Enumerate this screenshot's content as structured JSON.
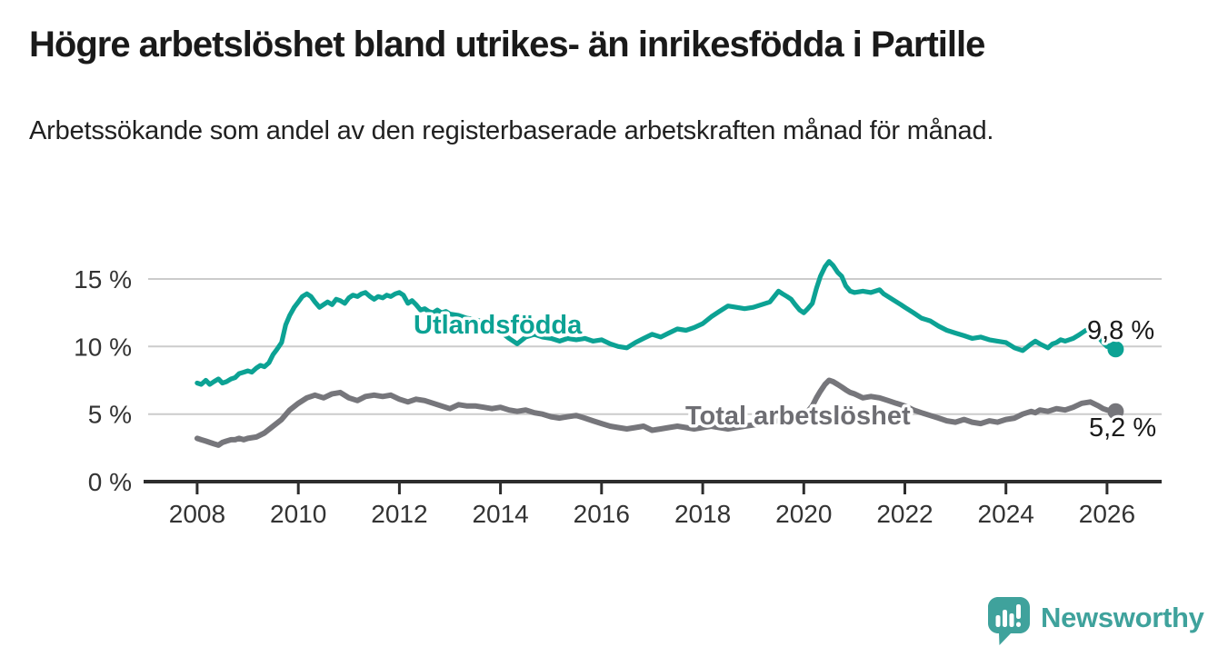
{
  "header": {
    "title": "Högre arbetslöshet bland utrikes- än inrikesfödda i Partille",
    "subtitle": "Arbetssökande som andel av den registerbaserade arbetskraften månad för månad."
  },
  "branding": {
    "name": "Newsworthy",
    "color": "#3FA29C",
    "icon": "bar-chart-speech-bubble-icon"
  },
  "chart_data": {
    "type": "line",
    "unit": "%",
    "frequency": "monthly",
    "grid": "horizontal",
    "xlim": [
      2007.03,
      2027.08
    ],
    "ylim": [
      0,
      16.95
    ],
    "x_ticks": [
      {
        "value": 2008,
        "label": "2008"
      },
      {
        "value": 2010,
        "label": "2010"
      },
      {
        "value": 2012,
        "label": "2012"
      },
      {
        "value": 2014,
        "label": "2014"
      },
      {
        "value": 2016,
        "label": "2016"
      },
      {
        "value": 2018,
        "label": "2018"
      },
      {
        "value": 2020,
        "label": "2020"
      },
      {
        "value": 2022,
        "label": "2022"
      },
      {
        "value": 2024,
        "label": "2024"
      },
      {
        "value": 2026,
        "label": "2026"
      }
    ],
    "y_ticks": [
      {
        "value": 0,
        "label": "0 %"
      },
      {
        "value": 5,
        "label": "5 %"
      },
      {
        "value": 10,
        "label": "10 %"
      },
      {
        "value": 15,
        "label": "15 %"
      }
    ],
    "series": [
      {
        "name": "Utlandsfödda",
        "color": "#0CA294",
        "end_value": 9.8,
        "end_label": "9,8 %",
        "points": [
          [
            2008.0,
            7.3
          ],
          [
            2008.08,
            7.2
          ],
          [
            2008.17,
            7.5
          ],
          [
            2008.25,
            7.2
          ],
          [
            2008.33,
            7.4
          ],
          [
            2008.42,
            7.6
          ],
          [
            2008.5,
            7.3
          ],
          [
            2008.58,
            7.4
          ],
          [
            2008.67,
            7.6
          ],
          [
            2008.75,
            7.7
          ],
          [
            2008.83,
            8.0
          ],
          [
            2008.92,
            8.1
          ],
          [
            2009.0,
            8.2
          ],
          [
            2009.08,
            8.1
          ],
          [
            2009.17,
            8.4
          ],
          [
            2009.25,
            8.6
          ],
          [
            2009.33,
            8.5
          ],
          [
            2009.42,
            8.8
          ],
          [
            2009.5,
            9.4
          ],
          [
            2009.58,
            9.8
          ],
          [
            2009.67,
            10.3
          ],
          [
            2009.75,
            11.6
          ],
          [
            2009.83,
            12.3
          ],
          [
            2009.92,
            12.9
          ],
          [
            2010.0,
            13.3
          ],
          [
            2010.08,
            13.7
          ],
          [
            2010.17,
            13.9
          ],
          [
            2010.25,
            13.7
          ],
          [
            2010.33,
            13.3
          ],
          [
            2010.42,
            12.9
          ],
          [
            2010.5,
            13.1
          ],
          [
            2010.58,
            13.3
          ],
          [
            2010.67,
            13.1
          ],
          [
            2010.75,
            13.5
          ],
          [
            2010.83,
            13.4
          ],
          [
            2010.92,
            13.2
          ],
          [
            2011.0,
            13.6
          ],
          [
            2011.08,
            13.8
          ],
          [
            2011.17,
            13.7
          ],
          [
            2011.25,
            13.9
          ],
          [
            2011.33,
            14.0
          ],
          [
            2011.42,
            13.7
          ],
          [
            2011.5,
            13.5
          ],
          [
            2011.58,
            13.7
          ],
          [
            2011.67,
            13.6
          ],
          [
            2011.75,
            13.8
          ],
          [
            2011.83,
            13.7
          ],
          [
            2011.92,
            13.9
          ],
          [
            2012.0,
            14.0
          ],
          [
            2012.08,
            13.8
          ],
          [
            2012.17,
            13.2
          ],
          [
            2012.25,
            13.4
          ],
          [
            2012.33,
            13.1
          ],
          [
            2012.42,
            12.7
          ],
          [
            2012.5,
            12.8
          ],
          [
            2012.58,
            12.6
          ],
          [
            2012.67,
            12.5
          ],
          [
            2012.75,
            12.7
          ],
          [
            2012.83,
            12.5
          ],
          [
            2012.92,
            12.6
          ],
          [
            2013.0,
            12.4
          ],
          [
            2013.17,
            12.3
          ],
          [
            2013.33,
            12.1
          ],
          [
            2013.5,
            12.0
          ],
          [
            2013.67,
            11.8
          ],
          [
            2013.83,
            11.5
          ],
          [
            2014.0,
            11.1
          ],
          [
            2014.17,
            10.6
          ],
          [
            2014.33,
            10.2
          ],
          [
            2014.5,
            10.7
          ],
          [
            2014.67,
            10.9
          ],
          [
            2014.83,
            10.7
          ],
          [
            2015.0,
            10.6
          ],
          [
            2015.17,
            10.4
          ],
          [
            2015.33,
            10.6
          ],
          [
            2015.5,
            10.5
          ],
          [
            2015.67,
            10.6
          ],
          [
            2015.83,
            10.4
          ],
          [
            2016.0,
            10.5
          ],
          [
            2016.17,
            10.2
          ],
          [
            2016.33,
            10.0
          ],
          [
            2016.5,
            9.9
          ],
          [
            2016.67,
            10.3
          ],
          [
            2016.83,
            10.6
          ],
          [
            2017.0,
            10.9
          ],
          [
            2017.17,
            10.7
          ],
          [
            2017.33,
            11.0
          ],
          [
            2017.5,
            11.3
          ],
          [
            2017.67,
            11.2
          ],
          [
            2017.83,
            11.4
          ],
          [
            2018.0,
            11.7
          ],
          [
            2018.17,
            12.2
          ],
          [
            2018.33,
            12.6
          ],
          [
            2018.5,
            13.0
          ],
          [
            2018.67,
            12.9
          ],
          [
            2018.83,
            12.8
          ],
          [
            2019.0,
            12.9
          ],
          [
            2019.17,
            13.1
          ],
          [
            2019.33,
            13.3
          ],
          [
            2019.5,
            14.1
          ],
          [
            2019.58,
            13.9
          ],
          [
            2019.67,
            13.7
          ],
          [
            2019.75,
            13.5
          ],
          [
            2019.83,
            13.1
          ],
          [
            2019.92,
            12.7
          ],
          [
            2020.0,
            12.5
          ],
          [
            2020.08,
            12.8
          ],
          [
            2020.17,
            13.2
          ],
          [
            2020.25,
            14.3
          ],
          [
            2020.33,
            15.2
          ],
          [
            2020.42,
            15.9
          ],
          [
            2020.5,
            16.3
          ],
          [
            2020.58,
            16.0
          ],
          [
            2020.67,
            15.5
          ],
          [
            2020.75,
            15.2
          ],
          [
            2020.83,
            14.5
          ],
          [
            2020.92,
            14.1
          ],
          [
            2021.0,
            14.0
          ],
          [
            2021.17,
            14.1
          ],
          [
            2021.33,
            14.0
          ],
          [
            2021.5,
            14.2
          ],
          [
            2021.58,
            13.9
          ],
          [
            2021.75,
            13.5
          ],
          [
            2021.92,
            13.1
          ],
          [
            2022.0,
            12.9
          ],
          [
            2022.17,
            12.5
          ],
          [
            2022.33,
            12.1
          ],
          [
            2022.5,
            11.9
          ],
          [
            2022.67,
            11.5
          ],
          [
            2022.83,
            11.2
          ],
          [
            2023.0,
            11.0
          ],
          [
            2023.17,
            10.8
          ],
          [
            2023.33,
            10.6
          ],
          [
            2023.5,
            10.7
          ],
          [
            2023.67,
            10.5
          ],
          [
            2023.83,
            10.4
          ],
          [
            2024.0,
            10.3
          ],
          [
            2024.17,
            9.9
          ],
          [
            2024.33,
            9.7
          ],
          [
            2024.5,
            10.2
          ],
          [
            2024.58,
            10.4
          ],
          [
            2024.67,
            10.2
          ],
          [
            2024.83,
            9.9
          ],
          [
            2024.92,
            10.2
          ],
          [
            2025.0,
            10.3
          ],
          [
            2025.08,
            10.5
          ],
          [
            2025.17,
            10.4
          ],
          [
            2025.25,
            10.5
          ],
          [
            2025.33,
            10.6
          ],
          [
            2025.42,
            10.8
          ],
          [
            2025.5,
            11.0
          ],
          [
            2025.58,
            11.2
          ],
          [
            2025.67,
            11.3
          ],
          [
            2025.75,
            11.0
          ],
          [
            2025.83,
            10.7
          ],
          [
            2025.92,
            10.3
          ],
          [
            2026.0,
            10.0
          ],
          [
            2026.08,
            10.1
          ],
          [
            2026.17,
            9.8
          ]
        ]
      },
      {
        "name": "Total arbetslöshet",
        "color": "#76767B",
        "end_value": 5.2,
        "end_label": "5,2 %",
        "points": [
          [
            2008.0,
            3.2
          ],
          [
            2008.08,
            3.1
          ],
          [
            2008.17,
            3.0
          ],
          [
            2008.25,
            2.9
          ],
          [
            2008.33,
            2.8
          ],
          [
            2008.42,
            2.7
          ],
          [
            2008.5,
            2.9
          ],
          [
            2008.58,
            3.0
          ],
          [
            2008.67,
            3.1
          ],
          [
            2008.75,
            3.1
          ],
          [
            2008.83,
            3.2
          ],
          [
            2008.92,
            3.1
          ],
          [
            2009.0,
            3.2
          ],
          [
            2009.17,
            3.3
          ],
          [
            2009.33,
            3.6
          ],
          [
            2009.5,
            4.1
          ],
          [
            2009.67,
            4.6
          ],
          [
            2009.83,
            5.3
          ],
          [
            2010.0,
            5.8
          ],
          [
            2010.17,
            6.2
          ],
          [
            2010.33,
            6.4
          ],
          [
            2010.5,
            6.2
          ],
          [
            2010.67,
            6.5
          ],
          [
            2010.83,
            6.6
          ],
          [
            2011.0,
            6.2
          ],
          [
            2011.17,
            6.0
          ],
          [
            2011.33,
            6.3
          ],
          [
            2011.5,
            6.4
          ],
          [
            2011.67,
            6.3
          ],
          [
            2011.83,
            6.4
          ],
          [
            2012.0,
            6.1
          ],
          [
            2012.17,
            5.9
          ],
          [
            2012.33,
            6.1
          ],
          [
            2012.5,
            6.0
          ],
          [
            2012.67,
            5.8
          ],
          [
            2012.83,
            5.6
          ],
          [
            2013.0,
            5.4
          ],
          [
            2013.17,
            5.7
          ],
          [
            2013.33,
            5.6
          ],
          [
            2013.5,
            5.6
          ],
          [
            2013.67,
            5.5
          ],
          [
            2013.83,
            5.4
          ],
          [
            2014.0,
            5.5
          ],
          [
            2014.17,
            5.3
          ],
          [
            2014.33,
            5.2
          ],
          [
            2014.5,
            5.3
          ],
          [
            2014.67,
            5.1
          ],
          [
            2014.83,
            5.0
          ],
          [
            2015.0,
            4.8
          ],
          [
            2015.17,
            4.7
          ],
          [
            2015.33,
            4.8
          ],
          [
            2015.5,
            4.9
          ],
          [
            2015.67,
            4.7
          ],
          [
            2015.83,
            4.5
          ],
          [
            2016.0,
            4.3
          ],
          [
            2016.17,
            4.1
          ],
          [
            2016.33,
            4.0
          ],
          [
            2016.5,
            3.9
          ],
          [
            2016.67,
            4.0
          ],
          [
            2016.83,
            4.1
          ],
          [
            2017.0,
            3.8
          ],
          [
            2017.17,
            3.9
          ],
          [
            2017.33,
            4.0
          ],
          [
            2017.5,
            4.1
          ],
          [
            2017.67,
            4.0
          ],
          [
            2017.83,
            3.9
          ],
          [
            2018.0,
            4.0
          ],
          [
            2018.17,
            4.1
          ],
          [
            2018.33,
            4.0
          ],
          [
            2018.5,
            3.9
          ],
          [
            2018.67,
            4.0
          ],
          [
            2018.83,
            4.1
          ],
          [
            2019.0,
            4.2
          ],
          [
            2019.17,
            4.3
          ],
          [
            2019.33,
            4.4
          ],
          [
            2019.5,
            4.5
          ],
          [
            2019.67,
            4.6
          ],
          [
            2019.83,
            4.8
          ],
          [
            2020.0,
            5.0
          ],
          [
            2020.08,
            5.2
          ],
          [
            2020.17,
            5.6
          ],
          [
            2020.25,
            6.2
          ],
          [
            2020.33,
            6.7
          ],
          [
            2020.42,
            7.2
          ],
          [
            2020.5,
            7.5
          ],
          [
            2020.58,
            7.4
          ],
          [
            2020.67,
            7.2
          ],
          [
            2020.75,
            7.0
          ],
          [
            2020.83,
            6.8
          ],
          [
            2020.92,
            6.6
          ],
          [
            2021.0,
            6.5
          ],
          [
            2021.17,
            6.2
          ],
          [
            2021.33,
            6.3
          ],
          [
            2021.5,
            6.2
          ],
          [
            2021.67,
            6.0
          ],
          [
            2021.83,
            5.8
          ],
          [
            2022.0,
            5.6
          ],
          [
            2022.17,
            5.3
          ],
          [
            2022.33,
            5.1
          ],
          [
            2022.5,
            4.9
          ],
          [
            2022.67,
            4.7
          ],
          [
            2022.83,
            4.5
          ],
          [
            2023.0,
            4.4
          ],
          [
            2023.17,
            4.6
          ],
          [
            2023.33,
            4.4
          ],
          [
            2023.5,
            4.3
          ],
          [
            2023.67,
            4.5
          ],
          [
            2023.83,
            4.4
          ],
          [
            2024.0,
            4.6
          ],
          [
            2024.17,
            4.7
          ],
          [
            2024.33,
            5.0
          ],
          [
            2024.5,
            5.2
          ],
          [
            2024.58,
            5.1
          ],
          [
            2024.67,
            5.3
          ],
          [
            2024.83,
            5.2
          ],
          [
            2025.0,
            5.4
          ],
          [
            2025.17,
            5.3
          ],
          [
            2025.33,
            5.5
          ],
          [
            2025.5,
            5.8
          ],
          [
            2025.67,
            5.9
          ],
          [
            2025.83,
            5.6
          ],
          [
            2025.92,
            5.4
          ],
          [
            2026.0,
            5.3
          ],
          [
            2026.17,
            5.2
          ]
        ]
      }
    ]
  }
}
